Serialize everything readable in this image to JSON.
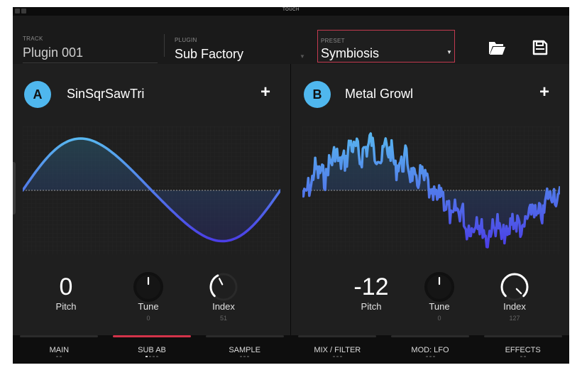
{
  "statusbar": {
    "title": "TOUCH"
  },
  "header": {
    "track": {
      "label": "TRACK",
      "value": "Plugin 001"
    },
    "plugin": {
      "label": "PLUGIN",
      "value": "Sub Factory"
    },
    "preset": {
      "label": "PRESET",
      "value": "Symbiosis"
    },
    "icons": {
      "folder": "folder-open-icon",
      "save": "save-disk-icon"
    }
  },
  "osc_a": {
    "badge": "A",
    "name": "SinSqrSawTri",
    "add_label": "+",
    "pitch": {
      "value": "0",
      "label": "Pitch"
    },
    "tune": {
      "label": "Tune",
      "value": "0",
      "level": 0.5
    },
    "index": {
      "label": "Index",
      "value": "51",
      "level": 0.4
    }
  },
  "osc_b": {
    "badge": "B",
    "name": "Metal Growl",
    "add_label": "+",
    "pitch": {
      "value": "-12",
      "label": "Pitch"
    },
    "tune": {
      "label": "Tune",
      "value": "0",
      "level": 0.5
    },
    "index": {
      "label": "Index",
      "value": "127",
      "level": 1.0
    }
  },
  "tabs": [
    {
      "label": "MAIN",
      "active": false,
      "pages": 2,
      "current": -1
    },
    {
      "label": "SUB AB",
      "active": true,
      "pages": 4,
      "current": 0
    },
    {
      "label": "SAMPLE",
      "active": false,
      "pages": 3,
      "current": -1
    },
    {
      "label": "MIX / FILTER",
      "active": false,
      "pages": 3,
      "current": -1
    },
    {
      "label": "MOD: LFO",
      "active": false,
      "pages": 3,
      "current": -1
    },
    {
      "label": "EFFECTS",
      "active": false,
      "pages": 2,
      "current": -1
    }
  ],
  "colors": {
    "accent": "#d3334a",
    "osc_badge": "#4fb7ee",
    "wave_top": "#58b6ef",
    "wave_bottom": "#4b3ee6"
  }
}
